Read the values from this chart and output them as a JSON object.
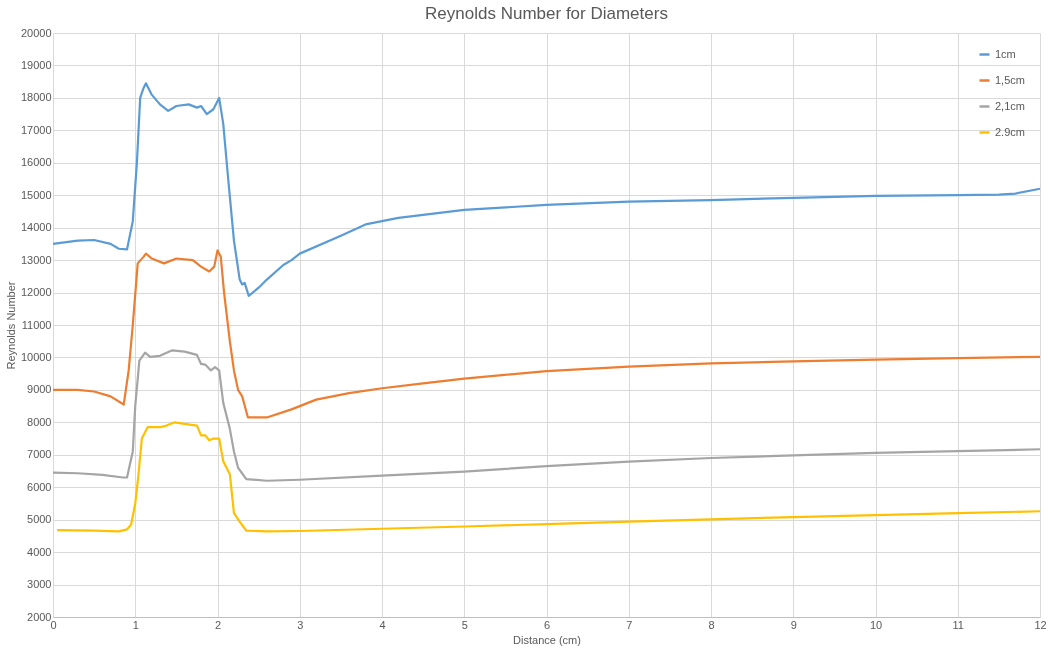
{
  "chart_data": {
    "type": "line",
    "title": "Reynolds Number for Diameters",
    "xlabel": "Distance (cm)",
    "ylabel": "Reynolds Number",
    "xlim": [
      0,
      12
    ],
    "xticks": [
      0,
      1,
      2,
      3,
      4,
      5,
      6,
      7,
      8,
      9,
      10,
      11,
      12
    ],
    "ylim": [
      2000,
      20000
    ],
    "yticks": [
      2000,
      3000,
      4000,
      5000,
      6000,
      7000,
      8000,
      9000,
      10000,
      11000,
      12000,
      13000,
      14000,
      15000,
      16000,
      17000,
      18000,
      19000,
      20000
    ],
    "grid": true,
    "legend": "top right",
    "marker": "none",
    "line_style": "solid",
    "series": [
      {
        "name": "1cm",
        "color": "#5b9bd5",
        "x": [
          0,
          0.3,
          0.5,
          0.7,
          0.8,
          0.9,
          0.97,
          1.02,
          1.06,
          1.1,
          1.13,
          1.2,
          1.3,
          1.4,
          1.5,
          1.65,
          1.75,
          1.8,
          1.87,
          1.95,
          2.02,
          2.07,
          2.13,
          2.2,
          2.27,
          2.3,
          2.33,
          2.38,
          2.5,
          2.6,
          2.8,
          2.9,
          3.0,
          3.5,
          3.8,
          4.2,
          5,
          6,
          7,
          8,
          9,
          10,
          11,
          11.5,
          11.7,
          12
        ],
        "values": [
          13500,
          13600,
          13620,
          13500,
          13350,
          13330,
          14200,
          16000,
          18000,
          18300,
          18450,
          18100,
          17800,
          17600,
          17750,
          17800,
          17700,
          17750,
          17500,
          17650,
          18000,
          17200,
          15500,
          13600,
          12400,
          12250,
          12300,
          11900,
          12150,
          12400,
          12850,
          13000,
          13200,
          13750,
          14100,
          14300,
          14550,
          14700,
          14800,
          14850,
          14920,
          14980,
          15000,
          15020,
          15050,
          15200
        ]
      },
      {
        "name": "1,5cm",
        "color": "#ed7d31",
        "x": [
          0,
          0.3,
          0.5,
          0.7,
          0.86,
          0.92,
          0.97,
          1.03,
          1.1,
          1.13,
          1.2,
          1.35,
          1.5,
          1.7,
          1.8,
          1.9,
          1.96,
          2.0,
          2.04,
          2.08,
          2.15,
          2.2,
          2.25,
          2.3,
          2.37,
          2.6,
          2.9,
          3.0,
          3.2,
          3.6,
          4,
          4.5,
          5,
          6,
          7,
          8,
          9,
          10,
          11,
          12
        ],
        "values": [
          9000,
          9000,
          8950,
          8800,
          8550,
          9600,
          11000,
          12900,
          13100,
          13200,
          13050,
          12900,
          13050,
          13000,
          12800,
          12650,
          12800,
          13300,
          13100,
          12000,
          10500,
          9600,
          9000,
          8800,
          8150,
          8150,
          8400,
          8500,
          8700,
          8900,
          9050,
          9200,
          9350,
          9580,
          9720,
          9820,
          9880,
          9930,
          9980,
          10020
        ]
      },
      {
        "name": "2,1cm",
        "color": "#a5a5a5",
        "x": [
          0,
          0.3,
          0.6,
          0.85,
          0.9,
          0.97,
          1.0,
          1.05,
          1.12,
          1.18,
          1.3,
          1.45,
          1.6,
          1.75,
          1.8,
          1.85,
          1.92,
          1.97,
          2.02,
          2.07,
          2.15,
          2.2,
          2.25,
          2.35,
          2.6,
          3,
          4,
          5,
          6,
          7,
          8,
          9,
          10,
          11,
          12
        ],
        "values": [
          6450,
          6430,
          6380,
          6300,
          6300,
          7100,
          8500,
          9900,
          10150,
          10020,
          10050,
          10220,
          10180,
          10080,
          9800,
          9780,
          9600,
          9700,
          9600,
          8600,
          7800,
          7100,
          6600,
          6250,
          6200,
          6230,
          6360,
          6480,
          6650,
          6790,
          6900,
          6980,
          7060,
          7110,
          7170
        ]
      },
      {
        "name": "2.9cm",
        "color": "#ffc000",
        "x": [
          0.05,
          0.5,
          0.8,
          0.9,
          0.95,
          1.0,
          1.04,
          1.08,
          1.15,
          1.3,
          1.38,
          1.48,
          1.6,
          1.75,
          1.8,
          1.85,
          1.9,
          1.95,
          2.02,
          2.07,
          2.15,
          2.2,
          2.28,
          2.35,
          2.6,
          3,
          4,
          5,
          6,
          7,
          8,
          9,
          10,
          11,
          12
        ],
        "values": [
          4680,
          4660,
          4640,
          4700,
          4850,
          5500,
          6400,
          7500,
          7850,
          7850,
          7900,
          8000,
          7950,
          7900,
          7600,
          7600,
          7450,
          7500,
          7500,
          6800,
          6400,
          5200,
          4900,
          4660,
          4640,
          4650,
          4720,
          4790,
          4860,
          4940,
          5010,
          5080,
          5140,
          5200,
          5260
        ]
      }
    ]
  }
}
